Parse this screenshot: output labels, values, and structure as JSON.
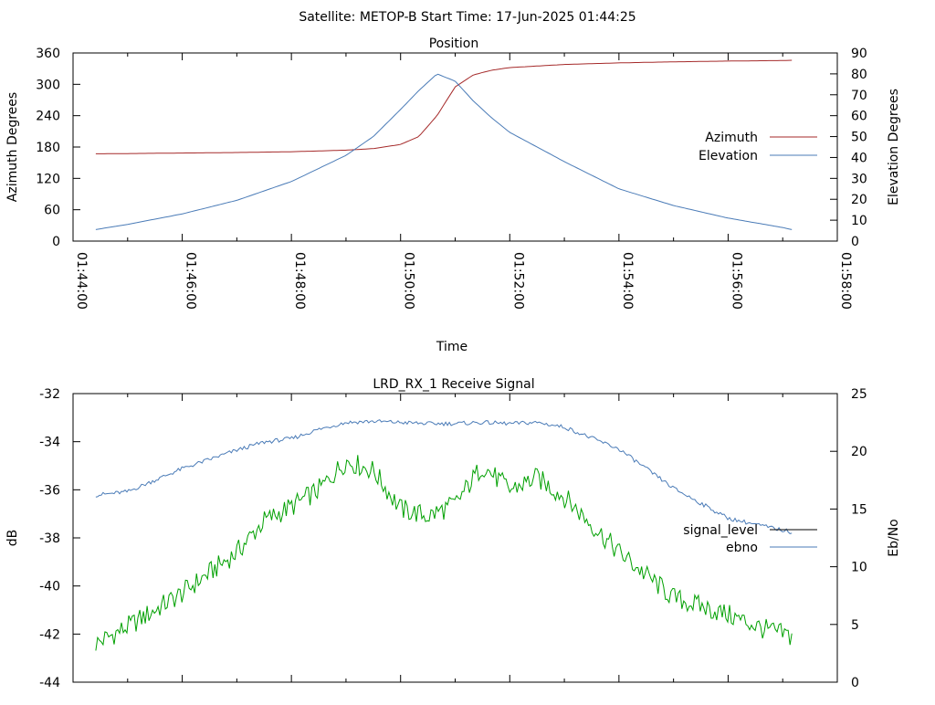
{
  "header": {
    "title": "Satellite: METOP-B    Start Time: 17-Jun-2025 01:44:25"
  },
  "chart_data": [
    {
      "type": "line",
      "title": "Position",
      "xlabel": "Time",
      "ylabel": "Azimuth Degrees",
      "y2label": "Elevation Degrees",
      "xlim": [
        "01:44:00",
        "01:58:00"
      ],
      "x_ticks": [
        "01:44:00",
        "01:46:00",
        "01:48:00",
        "01:50:00",
        "01:52:00",
        "01:54:00",
        "01:56:00",
        "01:58:00"
      ],
      "ylim": [
        0,
        360
      ],
      "y_ticks": [
        "0",
        "60",
        "120",
        "180",
        "240",
        "300",
        "360"
      ],
      "y2lim": [
        0,
        90
      ],
      "y2_ticks": [
        "0",
        "10",
        "20",
        "30",
        "40",
        "50",
        "60",
        "70",
        "80",
        "90"
      ],
      "legend_position": "right",
      "grid": false,
      "x": [
        "01:44:25",
        "01:45:00",
        "01:46:00",
        "01:47:00",
        "01:48:00",
        "01:49:00",
        "01:49:30",
        "01:50:00",
        "01:50:20",
        "01:50:40",
        "01:51:00",
        "01:51:20",
        "01:51:40",
        "01:52:00",
        "01:53:00",
        "01:54:00",
        "01:55:00",
        "01:56:00",
        "01:57:00",
        "01:57:10"
      ],
      "series": [
        {
          "name": "Azimuth",
          "color": "#a52a2a",
          "axis": "left",
          "values": [
            167,
            167.5,
            168.5,
            169.5,
            171,
            174,
            177,
            185,
            200,
            240,
            295,
            318,
            327,
            332,
            338,
            341,
            343,
            344.5,
            345.5,
            346
          ]
        },
        {
          "name": "Elevation",
          "color": "#4a7bb7",
          "axis": "right",
          "values": [
            5.5,
            8,
            13,
            19.5,
            28.5,
            41,
            50,
            63,
            72,
            80,
            76.5,
            67,
            59,
            52,
            38,
            25,
            17,
            11,
            6.5,
            5.5
          ]
        }
      ]
    },
    {
      "type": "line",
      "title": "LRD_RX_1 Receive Signal",
      "xlabel": "",
      "ylabel": "dB",
      "y2label": "Eb/No",
      "xlim": [
        "01:44:00",
        "01:58:00"
      ],
      "ylim": [
        -44,
        -32
      ],
      "y_ticks": [
        "-32",
        "-34",
        "-36",
        "-38",
        "-40",
        "-42",
        "-44"
      ],
      "y2lim": [
        0,
        25
      ],
      "y2_ticks": [
        "0",
        "5",
        "10",
        "15",
        "20",
        "25"
      ],
      "legend_position": "right",
      "grid": false,
      "x": [
        "01:44:25",
        "01:45:00",
        "01:46:00",
        "01:47:00",
        "01:47:30",
        "01:48:00",
        "01:48:30",
        "01:49:00",
        "01:49:30",
        "01:50:00",
        "01:50:30",
        "01:51:00",
        "01:51:30",
        "01:52:00",
        "01:52:30",
        "01:53:00",
        "01:54:00",
        "01:55:00",
        "01:56:00",
        "01:56:40",
        "01:57:10"
      ],
      "series": [
        {
          "name": "signal_level",
          "color": "#00a000",
          "axis": "left",
          "values": [
            -42.4,
            -41.7,
            -40.3,
            -38.6,
            -37.3,
            -36.7,
            -36.0,
            -34.8,
            -35.2,
            -36.8,
            -37.1,
            -36.6,
            -35.0,
            -36.0,
            -35.5,
            -36.3,
            -38.6,
            -40.5,
            -41.2,
            -41.8,
            -42.1
          ]
        },
        {
          "name": "ebno",
          "color": "#4a7bb7",
          "axis": "right",
          "values": [
            16.2,
            16.5,
            18.5,
            20.1,
            20.8,
            21.1,
            21.9,
            22.5,
            22.6,
            22.5,
            22.4,
            22.4,
            22.5,
            22.4,
            22.5,
            22.1,
            20.2,
            16.8,
            14.2,
            13.5,
            13.0
          ]
        }
      ]
    }
  ]
}
